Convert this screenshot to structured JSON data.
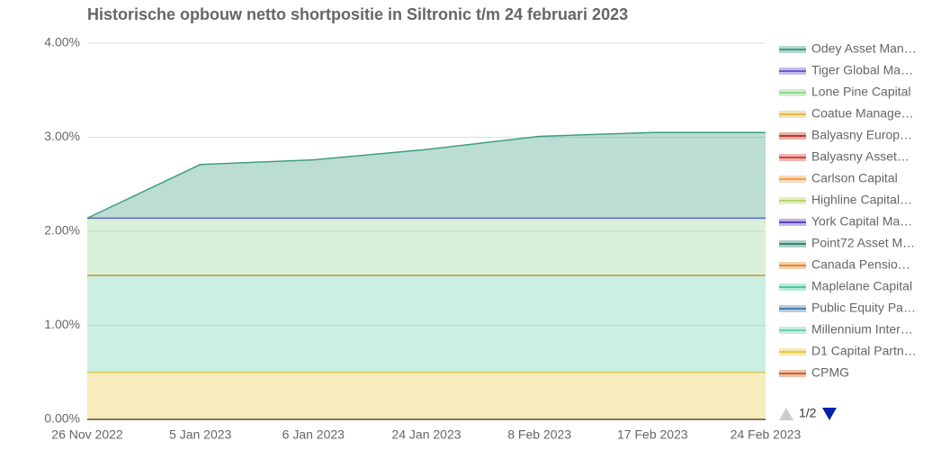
{
  "chart_data": {
    "type": "stacked_area",
    "title": "Historische opbouw netto shortpositie in Siltronic t/m 24 februari 2023",
    "categories": [
      "26 Nov 2022",
      "5 Jan 2023",
      "6 Jan 2023",
      "24 Jan 2023",
      "8 Feb 2023",
      "17 Feb 2023",
      "24 Feb 2023"
    ],
    "ylim": [
      0,
      4
    ],
    "yticks": [
      {
        "value": 0,
        "label": "0.00%"
      },
      {
        "value": 1,
        "label": "1.00%"
      },
      {
        "value": 2,
        "label": "2.00%"
      },
      {
        "value": 3,
        "label": "3.00%"
      },
      {
        "value": 4,
        "label": "4.00%"
      }
    ],
    "grid": true,
    "legend": "right",
    "pagination": "1/2",
    "series": [
      {
        "name": "Odey Asset Man…",
        "color": "#3f9e80",
        "values": [
          0,
          0.57,
          0.62,
          0.73,
          0.87,
          0.91,
          0.91
        ]
      },
      {
        "name": "Tiger Global Ma…",
        "color": "#6a5acd",
        "values": [
          0,
          0,
          0,
          0,
          0,
          0,
          0
        ]
      },
      {
        "name": "Lone Pine Capital",
        "color": "#8fd88f",
        "values": [
          0.61,
          0.61,
          0.61,
          0.61,
          0.61,
          0.61,
          0.61
        ]
      },
      {
        "name": "Coatue Manage…",
        "color": "#e6b84a",
        "values": [
          0,
          0,
          0,
          0,
          0,
          0,
          0
        ]
      },
      {
        "name": "Balyasny Europ…",
        "color": "#c0392b",
        "values": [
          0,
          0,
          0,
          0,
          0,
          0,
          0
        ]
      },
      {
        "name": "Balyasny Asset…",
        "color": "#d9443a",
        "values": [
          0,
          0,
          0,
          0,
          0,
          0,
          0
        ]
      },
      {
        "name": "Carlson Capital",
        "color": "#f0a050",
        "values": [
          0,
          0,
          0,
          0,
          0,
          0,
          0
        ]
      },
      {
        "name": "Highline Capital…",
        "color": "#b5d96a",
        "values": [
          0,
          0,
          0,
          0,
          0,
          0,
          0
        ]
      },
      {
        "name": "York Capital Ma…",
        "color": "#6040c8",
        "values": [
          0,
          0,
          0,
          0,
          0,
          0,
          0
        ]
      },
      {
        "name": "Point72 Asset M…",
        "color": "#2e8b72",
        "values": [
          0,
          0,
          0,
          0,
          0,
          0,
          0
        ]
      },
      {
        "name": "Canada Pensio…",
        "color": "#e08a30",
        "values": [
          0,
          0,
          0,
          0,
          0,
          0,
          0
        ]
      },
      {
        "name": "Maplelane Capital",
        "color": "#4dc8a0",
        "values": [
          0,
          0,
          0,
          0,
          0,
          0,
          0
        ]
      },
      {
        "name": "Public Equity Pa…",
        "color": "#4a7fa8",
        "values": [
          0,
          0,
          0,
          0,
          0,
          0,
          0
        ]
      },
      {
        "name": "Millennium Inter…",
        "color": "#6cd0b0",
        "values": [
          1.03,
          1.03,
          1.03,
          1.03,
          1.03,
          1.03,
          1.03
        ]
      },
      {
        "name": "D1 Capital Partn…",
        "color": "#e8c840",
        "values": [
          0.5,
          0.5,
          0.5,
          0.5,
          0.5,
          0.5,
          0.5
        ]
      },
      {
        "name": "CPMG",
        "color": "#d0602a",
        "values": [
          0,
          0,
          0,
          0,
          0,
          0,
          0
        ]
      }
    ]
  }
}
